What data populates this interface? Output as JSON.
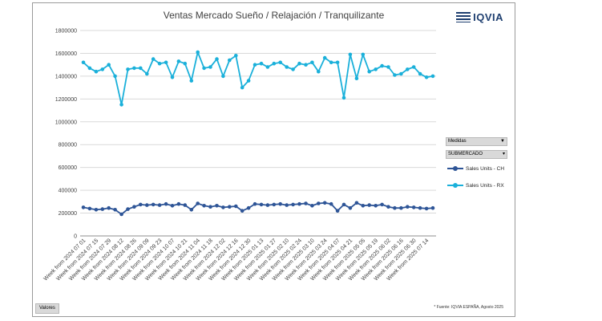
{
  "title": "Ventas Mercado Sueño / Relajación / Tranquilizante",
  "logo": "IQVIA",
  "source_note": "* Fuente: IQVIA ESPAÑA, Agosto 2025",
  "field_buttons": {
    "medidas": "Medidas",
    "submercado": "SUBMERCADO",
    "valores": "Valores"
  },
  "colors": {
    "ch": "#2e5597",
    "rx": "#1ab0da",
    "grid": "#d9d9d9"
  },
  "chart_data": {
    "type": "line",
    "title": "Ventas Mercado Sueño / Relajación / Tranquilizante",
    "ylim": [
      0,
      1800000
    ],
    "y_ticks": [
      0,
      200000,
      400000,
      600000,
      800000,
      1000000,
      1200000,
      1400000,
      1600000,
      1800000
    ],
    "y_tick_labels": [
      "0",
      "200000",
      "400000",
      "600000",
      "800000",
      "1000000",
      "1200000",
      "1400000",
      "1600000",
      "1800000"
    ],
    "grid": true,
    "legend_position": "right",
    "x_tick_labels": [
      "Week from 2024 07 01",
      "Week from 2024 07 15",
      "Week from 2024 07 29",
      "Week from 2024 08 12",
      "Week from 2024 08 26",
      "Week from 2024 09 09",
      "Week from 2024 09 23",
      "Week from 2024 10 07",
      "Week from 2024 10 21",
      "Week from 2024 11 04",
      "Week from 2024 11 18",
      "Week from 2024 12 02",
      "Week from 2024 12 16",
      "Week from 2024 12 30",
      "Week from 2025 01 13",
      "Week from 2025 01 27",
      "Week from 2025 02 10",
      "Week from 2025 02 24",
      "Week from 2025 03 10",
      "Week from 2025 03 24",
      "Week from 2025 04 07",
      "Week from 2025 04 21",
      "Week from 2025 05 05",
      "Week from 2025 05 19",
      "Week from 2025 06 02",
      "Week from 2025 06 16",
      "Week from 2025 06 30",
      "Week from 2025 07 14"
    ],
    "x": [
      "2024-07-01",
      "2024-07-08",
      "2024-07-15",
      "2024-07-22",
      "2024-07-29",
      "2024-08-05",
      "2024-08-12",
      "2024-08-19",
      "2024-08-26",
      "2024-09-02",
      "2024-09-09",
      "2024-09-16",
      "2024-09-23",
      "2024-09-30",
      "2024-10-07",
      "2024-10-14",
      "2024-10-21",
      "2024-10-28",
      "2024-11-04",
      "2024-11-11",
      "2024-11-18",
      "2024-11-25",
      "2024-12-02",
      "2024-12-09",
      "2024-12-16",
      "2024-12-23",
      "2024-12-30",
      "2025-01-06",
      "2025-01-13",
      "2025-01-20",
      "2025-01-27",
      "2025-02-03",
      "2025-02-10",
      "2025-02-17",
      "2025-02-24",
      "2025-03-03",
      "2025-03-10",
      "2025-03-17",
      "2025-03-24",
      "2025-03-31",
      "2025-04-07",
      "2025-04-14",
      "2025-04-21",
      "2025-04-28",
      "2025-05-05",
      "2025-05-12",
      "2025-05-19",
      "2025-05-26",
      "2025-06-02",
      "2025-06-09",
      "2025-06-16",
      "2025-06-23",
      "2025-06-30",
      "2025-07-07",
      "2025-07-14",
      "2025-07-21"
    ],
    "series": [
      {
        "name": "Sales Units - CH",
        "values": [
          250000,
          240000,
          230000,
          235000,
          245000,
          230000,
          190000,
          235000,
          255000,
          275000,
          270000,
          275000,
          270000,
          280000,
          265000,
          280000,
          270000,
          230000,
          285000,
          265000,
          255000,
          265000,
          250000,
          255000,
          260000,
          220000,
          245000,
          280000,
          275000,
          270000,
          275000,
          280000,
          270000,
          275000,
          280000,
          285000,
          265000,
          285000,
          290000,
          280000,
          220000,
          275000,
          245000,
          290000,
          265000,
          270000,
          265000,
          275000,
          255000,
          245000,
          245000,
          255000,
          250000,
          245000,
          240000,
          245000
        ]
      },
      {
        "name": "Sales Units - RX",
        "values": [
          1520000,
          1470000,
          1440000,
          1460000,
          1500000,
          1400000,
          1150000,
          1460000,
          1470000,
          1470000,
          1420000,
          1550000,
          1510000,
          1520000,
          1390000,
          1530000,
          1510000,
          1360000,
          1610000,
          1470000,
          1480000,
          1550000,
          1400000,
          1540000,
          1580000,
          1300000,
          1360000,
          1500000,
          1510000,
          1480000,
          1510000,
          1520000,
          1480000,
          1460000,
          1510000,
          1500000,
          1520000,
          1440000,
          1560000,
          1520000,
          1520000,
          1210000,
          1590000,
          1380000,
          1590000,
          1440000,
          1460000,
          1490000,
          1480000,
          1410000,
          1420000,
          1460000,
          1480000,
          1420000,
          1390000,
          1400000
        ]
      }
    ]
  }
}
